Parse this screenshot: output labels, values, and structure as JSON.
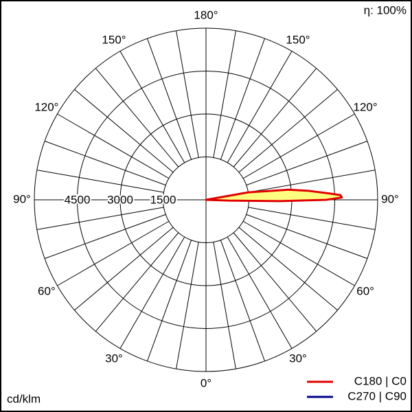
{
  "chart_data": {
    "type": "polar",
    "efficiency_label": "η: 100%",
    "unit_label": "cd/klm",
    "rlim": [
      0,
      6000
    ],
    "rticks": [
      1500,
      3000,
      4500
    ],
    "angle_ticks": [
      {
        "value": 0,
        "label": "0°"
      },
      {
        "value": 30,
        "label": "30°"
      },
      {
        "value": 60,
        "label": "60°"
      },
      {
        "value": 90,
        "label": "90°"
      },
      {
        "value": 120,
        "label": "120°"
      },
      {
        "value": 150,
        "label": "150°"
      },
      {
        "value": 180,
        "label": "180°"
      }
    ],
    "series": [
      {
        "name": "C180 | C0",
        "color": "#e00000",
        "fill": "#ffff80",
        "x": [
          0,
          80,
          87,
          88,
          89,
          90,
          91,
          92,
          93,
          95,
          97,
          100,
          110,
          180
        ],
        "values": [
          0,
          0,
          0,
          800,
          2600,
          4200,
          4750,
          4700,
          4300,
          3600,
          2900,
          1500,
          0,
          0
        ]
      },
      {
        "name": "C270 | C90",
        "color": "#00008b",
        "x": [
          0,
          90,
          180
        ],
        "values": [
          0,
          0,
          0
        ]
      }
    ]
  }
}
